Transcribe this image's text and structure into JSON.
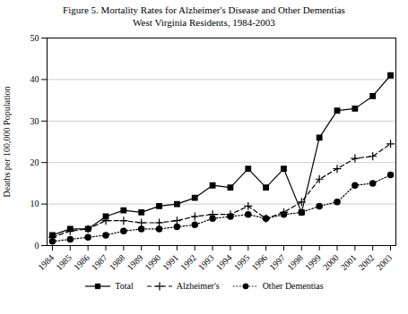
{
  "chart_data": {
    "type": "line",
    "title": "Figure 5.  Mortality Rates for Alzheimer's Disease and Other Dementias",
    "subtitle": "West Virginia Residents, 1984-2003",
    "y_label": "Deaths per 100,000 Population",
    "x": [
      1984,
      1985,
      1986,
      1987,
      1988,
      1989,
      1990,
      1991,
      1992,
      1993,
      1994,
      1995,
      1996,
      1997,
      1998,
      1999,
      2000,
      2001,
      2002,
      2003
    ],
    "series": [
      {
        "name": "Total",
        "color": "#000000",
        "marker": "square",
        "line_style": "solid",
        "values": [
          2.5,
          4.0,
          4.0,
          7.0,
          8.5,
          8.0,
          9.5,
          10.0,
          11.5,
          14.5,
          14.0,
          18.5,
          14.0,
          18.5,
          8.0,
          26.0,
          32.5,
          33.0,
          36.0,
          41.0
        ]
      },
      {
        "name": "Alzheimer's",
        "color": "#000000",
        "marker": "plus",
        "line_style": "dashed",
        "values": [
          2.0,
          3.5,
          4.0,
          6.0,
          6.0,
          5.5,
          5.5,
          6.0,
          7.0,
          7.5,
          7.5,
          9.5,
          6.5,
          8.0,
          10.5,
          16.0,
          18.5,
          21.0,
          21.5,
          24.5
        ]
      },
      {
        "name": "Other Dementias",
        "color": "#000000",
        "marker": "circle",
        "line_style": "dotted",
        "values": [
          1.0,
          1.5,
          2.0,
          2.5,
          3.5,
          4.0,
          4.0,
          4.5,
          5.0,
          6.5,
          7.0,
          7.5,
          6.5,
          7.5,
          8.0,
          9.5,
          10.5,
          14.5,
          15.0,
          17.0
        ]
      }
    ],
    "xlim": [
      1983.7,
      2003.3
    ],
    "xticks": [
      1984,
      1985,
      1986,
      1987,
      1988,
      1989,
      1990,
      1991,
      1992,
      1993,
      1994,
      1995,
      1996,
      1997,
      1998,
      1999,
      2000,
      2001,
      2002,
      2003
    ],
    "ylim": [
      0,
      50
    ],
    "yticks": [
      0,
      10,
      20,
      30,
      40,
      50
    ],
    "grid": true,
    "legend": "bottom"
  }
}
